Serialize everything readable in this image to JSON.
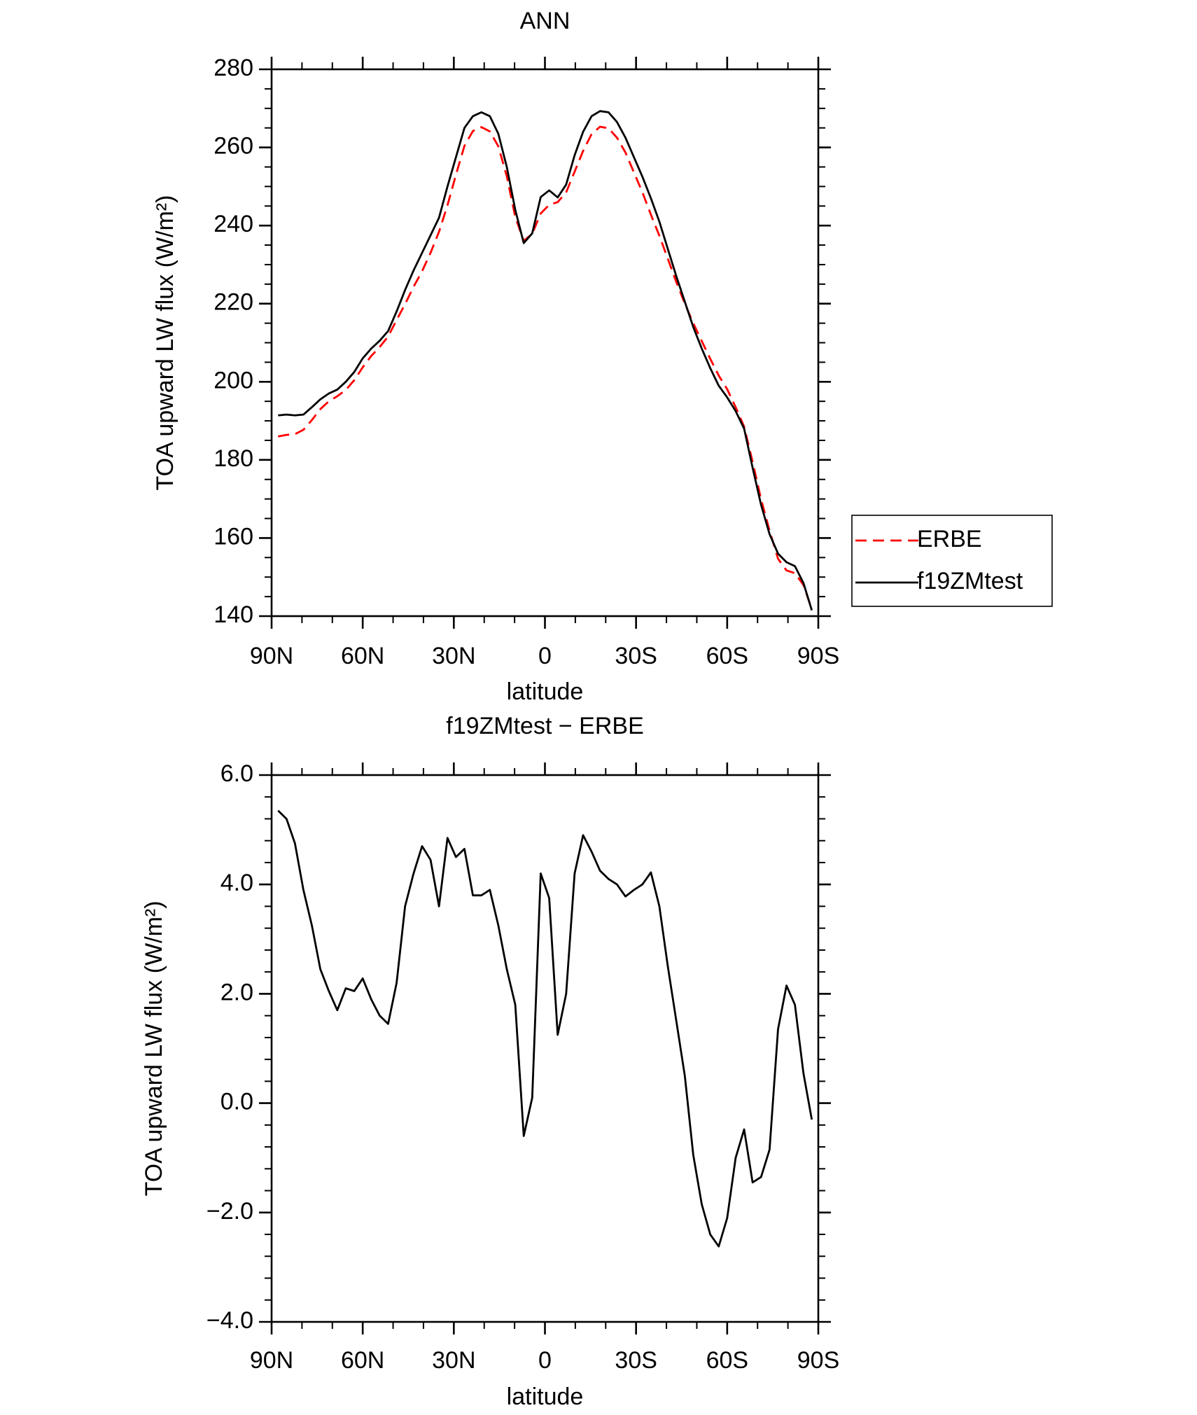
{
  "chart_data": [
    {
      "type": "line",
      "title": "ANN",
      "xlabel": "latitude",
      "ylabel": "TOA upward LW flux (W/m²)",
      "x": [
        87.86,
        85.1,
        82.31,
        79.53,
        76.74,
        73.95,
        71.16,
        68.37,
        65.58,
        62.79,
        60.0,
        57.21,
        54.42,
        51.63,
        48.84,
        46.05,
        43.26,
        40.46,
        37.67,
        34.88,
        32.09,
        29.3,
        26.51,
        23.72,
        20.93,
        18.14,
        15.35,
        12.56,
        9.77,
        6.98,
        4.19,
        1.4,
        -1.4,
        -4.19,
        -6.98,
        -9.77,
        -12.56,
        -15.35,
        -18.14,
        -20.93,
        -23.72,
        -26.51,
        -29.3,
        -32.09,
        -34.88,
        -37.67,
        -40.46,
        -43.26,
        -46.05,
        -48.84,
        -51.63,
        -54.42,
        -57.21,
        -60.0,
        -62.79,
        -65.58,
        -68.37,
        -71.16,
        -73.95,
        -76.74,
        -79.53,
        -82.31,
        -85.1,
        -87.86
      ],
      "series": [
        {
          "name": "ERBE",
          "color": "#ff0000",
          "style": "dashed",
          "values": [
            186.0,
            186.4,
            186.6,
            187.7,
            190.2,
            193.0,
            195.0,
            196.3,
            197.9,
            200.4,
            203.7,
            206.6,
            208.9,
            211.6,
            215.8,
            219.9,
            224.3,
            228.3,
            233.0,
            238.4,
            245.2,
            253.0,
            260.4,
            264.2,
            265.2,
            264.1,
            260.3,
            252.6,
            242.2,
            236.1,
            237.9,
            243.1,
            245.3,
            246.0,
            248.5,
            253.8,
            259.1,
            263.4,
            265.3,
            264.9,
            262.5,
            258.7,
            253.6,
            248.5,
            242.8,
            237.4,
            231.5,
            225.5,
            220.0,
            215.0,
            210.4,
            205.9,
            201.6,
            198.1,
            193.5,
            188.5,
            179.5,
            169.9,
            161.9,
            154.7,
            151.7,
            151.0,
            148.0,
            141.8
          ]
        },
        {
          "name": "f19ZMtest",
          "color": "#000000",
          "style": "solid",
          "values": [
            191.4,
            191.6,
            191.4,
            191.6,
            193.5,
            195.5,
            197.0,
            198.0,
            200.0,
            202.5,
            206.0,
            208.5,
            210.5,
            213.0,
            218.0,
            223.5,
            228.5,
            233.0,
            237.5,
            242.0,
            250.0,
            257.5,
            265.0,
            268.0,
            269.0,
            268.0,
            263.5,
            255.0,
            244.0,
            235.5,
            238.0,
            247.3,
            249.0,
            247.2,
            250.5,
            258.0,
            264.0,
            268.0,
            269.3,
            269.0,
            266.5,
            262.5,
            257.5,
            252.5,
            247.0,
            241.0,
            234.0,
            227.0,
            220.5,
            214.0,
            208.5,
            203.5,
            199.0,
            196.0,
            192.5,
            188.0,
            178.0,
            168.5,
            161.0,
            156.0,
            153.8,
            152.8,
            148.5,
            141.5
          ]
        }
      ],
      "xlim": [
        90,
        -90
      ],
      "xticks": [
        {
          "value": 90,
          "label": "90N"
        },
        {
          "value": 60,
          "label": "60N"
        },
        {
          "value": 30,
          "label": "30N"
        },
        0,
        {
          "value": -30,
          "label": "30S"
        },
        {
          "value": -60,
          "label": "60S"
        },
        {
          "value": -90,
          "label": "90S"
        }
      ],
      "ylim": [
        140,
        280
      ],
      "yticks": [
        140,
        160,
        180,
        200,
        220,
        240,
        260,
        280
      ],
      "legend": "outside-right"
    },
    {
      "type": "line",
      "title": "f19ZMtest − ERBE",
      "xlabel": "latitude",
      "ylabel": "TOA upward LW flux (W/m²)",
      "x": [
        87.86,
        85.1,
        82.31,
        79.53,
        76.74,
        73.95,
        71.16,
        68.37,
        65.58,
        62.79,
        60.0,
        57.21,
        54.42,
        51.63,
        48.84,
        46.05,
        43.26,
        40.46,
        37.67,
        34.88,
        32.09,
        29.3,
        26.51,
        23.72,
        20.93,
        18.14,
        15.35,
        12.56,
        9.77,
        6.98,
        4.19,
        1.4,
        -1.4,
        -4.19,
        -6.98,
        -9.77,
        -12.56,
        -15.35,
        -18.14,
        -20.93,
        -23.72,
        -26.51,
        -29.3,
        -32.09,
        -34.88,
        -37.67,
        -40.46,
        -43.26,
        -46.05,
        -48.84,
        -51.63,
        -54.42,
        -57.21,
        -60.0,
        -62.79,
        -65.58,
        -68.37,
        -71.16,
        -73.95,
        -76.74,
        -79.53,
        -82.31,
        -85.1,
        -87.86
      ],
      "color": "#000000",
      "values": [
        5.35,
        5.2,
        4.75,
        3.9,
        3.25,
        2.45,
        2.05,
        1.7,
        2.1,
        2.05,
        2.28,
        1.9,
        1.6,
        1.45,
        2.2,
        3.6,
        4.2,
        4.7,
        4.45,
        3.6,
        4.85,
        4.5,
        4.65,
        3.8,
        3.8,
        3.9,
        3.25,
        2.45,
        1.8,
        -0.6,
        0.1,
        4.2,
        3.75,
        1.25,
        2.0,
        4.2,
        4.9,
        4.6,
        4.25,
        4.1,
        4.0,
        3.78,
        3.9,
        4.0,
        4.22,
        3.6,
        2.5,
        1.5,
        0.5,
        -0.95,
        -1.85,
        -2.4,
        -2.62,
        -2.1,
        -1.0,
        -0.48,
        -1.45,
        -1.35,
        -0.85,
        1.35,
        2.15,
        1.8,
        0.55,
        -0.3
      ],
      "xlim": [
        90,
        -90
      ],
      "xticks": [
        {
          "value": 90,
          "label": "90N"
        },
        {
          "value": 60,
          "label": "60N"
        },
        {
          "value": 30,
          "label": "30N"
        },
        0,
        {
          "value": -30,
          "label": "30S"
        },
        {
          "value": -60,
          "label": "60S"
        },
        {
          "value": -90,
          "label": "90S"
        }
      ],
      "ylim": [
        -4,
        6
      ],
      "yticks": [
        {
          "value": -4,
          "label": "−4.0"
        },
        {
          "value": -2,
          "label": "−2.0"
        },
        {
          "value": 0,
          "label": "0.0"
        },
        {
          "value": 2,
          "label": "2.0"
        },
        {
          "value": 4,
          "label": "4.0"
        },
        {
          "value": 6,
          "label": "6.0"
        }
      ]
    }
  ]
}
